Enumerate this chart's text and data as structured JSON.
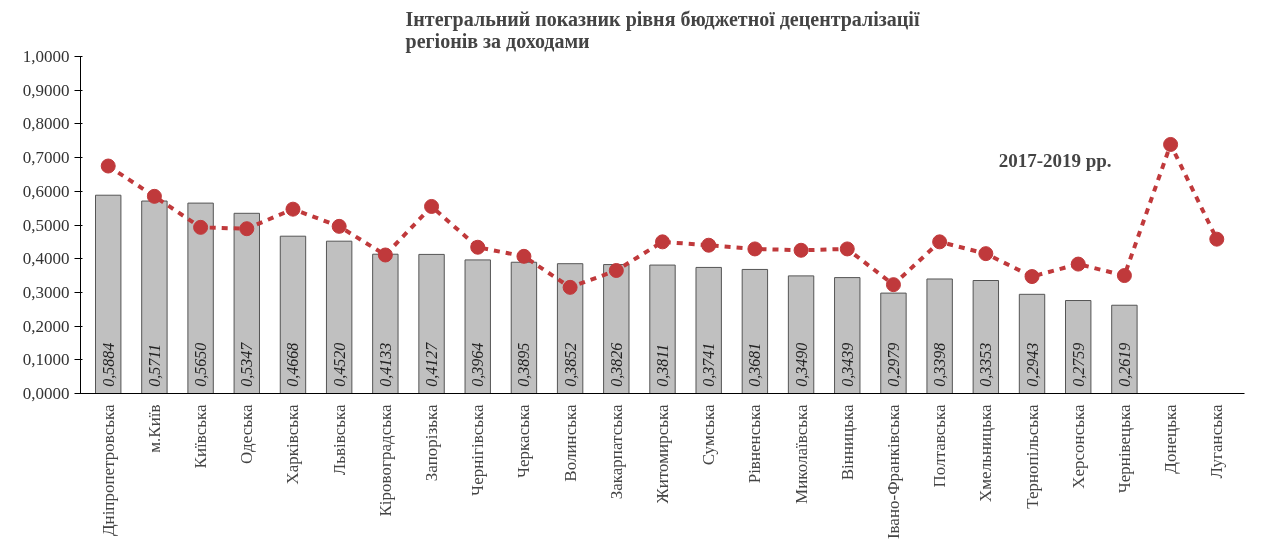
{
  "chart_data": {
    "type": "bar",
    "title": "Інтегральний показник рівня бюджетної децентралізації\nрегіонів за доходами",
    "annotations": [
      "2017-2019 рр."
    ],
    "categories": [
      "Дніпропетровська",
      "м.Київ",
      "Київська",
      "Одеська",
      "Харківська",
      "Львівська",
      "Кіровоградська",
      "Запорізька",
      "Чернігівська",
      "Черкаська",
      "Волинська",
      "Закарпатська",
      "Житомирська",
      "Сумська",
      "Рівненська",
      "Миколаївська",
      "Вінницька",
      "Івано-Франківська",
      "Полтавська",
      "Хмельницька",
      "Тернопільська",
      "Херсонська",
      "Чернівецька",
      "Донецька",
      "Луганська"
    ],
    "series": [
      {
        "color": "#c0c0c0",
        "values": [
          0.5884,
          0.5711,
          0.565,
          0.5347,
          0.4668,
          0.452,
          0.4133,
          0.4127,
          0.3964,
          0.3895,
          0.3852,
          0.3826,
          0.3811,
          0.3741,
          0.3681,
          0.349,
          0.3439,
          0.2979,
          0.3398,
          0.3353,
          0.2943,
          0.2759,
          0.2619,
          null,
          null
        ],
        "value_labels": [
          "0,5884",
          "0,5711",
          "0,5650",
          "0,5347",
          "0,4668",
          "0,4520",
          "0,4133",
          "0,4127",
          "0,3964",
          "0,3895",
          "0,3852",
          "0,3826",
          "0,3811",
          "0,3741",
          "0,3681",
          "0,3490",
          "0,3439",
          "0,2979",
          "0,3398",
          "0,3353",
          "0,2943",
          "0,2759",
          "0,2619",
          null,
          null
        ]
      },
      {
        "type": "line",
        "color": "#c0393b",
        "marker": "circle",
        "line_style": "dashed",
        "values": [
          0.675,
          0.585,
          0.493,
          0.489,
          0.547,
          0.496,
          0.411,
          0.555,
          0.434,
          0.407,
          0.315,
          0.365,
          0.45,
          0.44,
          0.429,
          0.425,
          0.429,
          0.323,
          0.45,
          0.415,
          0.347,
          0.384,
          0.35,
          0.739,
          0.458
        ]
      }
    ],
    "ylim": [
      0,
      1
    ],
    "yticks": [
      {
        "value": 0,
        "label": "0,0000"
      },
      {
        "value": 0.1,
        "label": "0,1000"
      },
      {
        "value": 0.2,
        "label": "0,2000"
      },
      {
        "value": 0.3,
        "label": "0,3000"
      },
      {
        "value": 0.4,
        "label": "0,4000"
      },
      {
        "value": 0.5,
        "label": "0,5000"
      },
      {
        "value": 0.6,
        "label": "0,6000"
      },
      {
        "value": 0.7,
        "label": "0,7000"
      },
      {
        "value": 0.8,
        "label": "0,8000"
      },
      {
        "value": 0.9,
        "label": "0,9000"
      },
      {
        "value": 1,
        "label": "1,0000"
      }
    ],
    "grid": false
  }
}
